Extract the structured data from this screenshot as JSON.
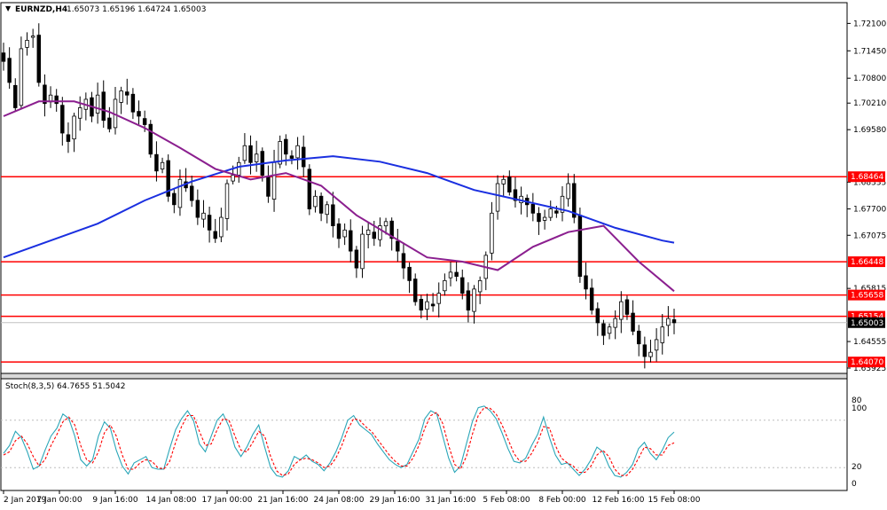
{
  "header": {
    "arrow": "▼",
    "symbol": "EURNZD,H4",
    "ohlc": "1.65073 1.65196 1.64724 1.65003"
  },
  "stoch": {
    "label": "Stoch(8,3,5) 64.7655 51.5042",
    "levels": [
      "100",
      "80",
      "20",
      "0"
    ]
  },
  "colors": {
    "background": "#ffffff",
    "candle": "#000000",
    "ma_fast": "#8b1f8f",
    "ma_slow": "#1a2fe0",
    "hline": "#ff0000",
    "hline_label_bg": "#ff0000",
    "current_price_bg": "#000000",
    "stoch_main": "#2aa6b8",
    "stoch_signal": "#ff0000"
  },
  "chart_data": [
    {
      "type": "candlestick",
      "title": "EURNZD,H4",
      "ylim": [
        1.6382,
        1.7255
      ],
      "y_ticks": [
        "1.72100",
        "1.71450",
        "1.70800",
        "1.70210",
        "1.69580",
        "1.68335",
        "1.67700",
        "1.67075",
        "1.65815",
        "1.64555",
        "1.63925"
      ],
      "x_ticks": [
        "2 Jan 2019",
        "7 Jan 00:00",
        "9 Jan 16:00",
        "14 Jan 08:00",
        "17 Jan 00:00",
        "21 Jan 16:00",
        "24 Jan 08:00",
        "29 Jan 16:00",
        "31 Jan 16:00",
        "5 Feb 08:00",
        "8 Feb 00:00",
        "12 Feb 16:00",
        "15 Feb 08:00"
      ],
      "horizontal_lines": [
        "1.68464",
        "1.66448",
        "1.65658",
        "1.65154",
        "1.64070"
      ],
      "current_price": "1.65003",
      "close_series": [
        1.712,
        1.707,
        1.701,
        1.715,
        1.717,
        1.718,
        1.707,
        1.702,
        1.704,
        1.702,
        1.695,
        1.693,
        1.699,
        1.701,
        1.703,
        1.699,
        1.704,
        1.698,
        1.696,
        1.703,
        1.705,
        1.704,
        1.7,
        1.699,
        1.697,
        1.69,
        1.686,
        1.688,
        1.68,
        1.678,
        1.684,
        1.682,
        1.679,
        1.675,
        1.676,
        1.672,
        1.67,
        1.675,
        1.683,
        1.685,
        1.688,
        1.692,
        1.688,
        1.69,
        1.685,
        1.68,
        1.688,
        1.693,
        1.69,
        1.689,
        1.692,
        1.687,
        1.677,
        1.68,
        1.676,
        1.678,
        1.673,
        1.67,
        1.672,
        1.667,
        1.663,
        1.671,
        1.672,
        1.67,
        1.673,
        1.674,
        1.67,
        1.667,
        1.663,
        1.66,
        1.655,
        1.653,
        1.655,
        1.654,
        1.657,
        1.66,
        1.662,
        1.661,
        1.657,
        1.653,
        1.658,
        1.66,
        1.666,
        1.676,
        1.683,
        1.684,
        1.681,
        1.679,
        1.68,
        1.678,
        1.676,
        1.674,
        1.675,
        1.677,
        1.676,
        1.68,
        1.683,
        1.675,
        1.661,
        1.658,
        1.653,
        1.65,
        1.647,
        1.649,
        1.651,
        1.655,
        1.652,
        1.648,
        1.645,
        1.642,
        1.643,
        1.646,
        1.649,
        1.651,
        1.65
      ],
      "ma_fast": {
        "name": "",
        "x_index": [
          0,
          6,
          12,
          18,
          24,
          30,
          36,
          42,
          48,
          54,
          60,
          66,
          72,
          78,
          84,
          90,
          96,
          102,
          108,
          114
        ],
        "values": [
          1.699,
          1.7025,
          1.7025,
          1.7,
          1.6962,
          1.6915,
          1.6865,
          1.684,
          1.6855,
          1.6825,
          1.6755,
          1.6705,
          1.6655,
          1.6645,
          1.6625,
          1.668,
          1.6715,
          1.673,
          1.6645,
          1.6575
        ]
      },
      "ma_slow": {
        "name": "",
        "x_index": [
          0,
          8,
          16,
          24,
          32,
          40,
          48,
          56,
          64,
          72,
          80,
          88,
          96,
          104,
          112,
          114
        ],
        "values": [
          1.6655,
          1.6695,
          1.6735,
          1.679,
          1.6835,
          1.687,
          1.6885,
          1.6895,
          1.6882,
          1.6855,
          1.6815,
          1.679,
          1.6765,
          1.6725,
          1.6695,
          1.669
        ]
      }
    },
    {
      "type": "line",
      "title": "Stoch(8,3,5) 64.7655 51.5042",
      "ylim": [
        0,
        100
      ],
      "levels": [
        80,
        20
      ],
      "series": [
        {
          "name": "",
          "values": [
            38,
            48,
            66,
            58,
            40,
            18,
            22,
            42,
            60,
            70,
            88,
            82,
            60,
            30,
            22,
            30,
            60,
            78,
            70,
            42,
            22,
            12,
            26,
            30,
            34,
            20,
            18,
            18,
            44,
            68,
            82,
            92,
            80,
            50,
            40,
            60,
            80,
            88,
            72,
            46,
            34,
            46,
            62,
            74,
            46,
            20,
            10,
            8,
            16,
            34,
            30,
            36,
            28,
            24,
            16,
            26,
            40,
            58,
            80,
            86,
            74,
            68,
            62,
            50,
            40,
            30,
            24,
            20,
            24,
            40,
            56,
            82,
            92,
            88,
            60,
            32,
            14,
            22,
            50,
            78,
            96,
            98,
            92,
            82,
            64,
            44,
            28,
            26,
            32,
            48,
            62,
            84,
            58,
            36,
            24,
            26,
            18,
            10,
            18,
            30,
            46,
            40,
            22,
            10,
            8,
            14,
            24,
            44,
            52,
            38,
            30,
            42,
            58,
            65
          ]
        },
        {
          "name": "",
          "values": [
            36,
            40,
            54,
            60,
            50,
            34,
            22,
            30,
            48,
            62,
            78,
            84,
            74,
            48,
            30,
            26,
            40,
            64,
            74,
            60,
            36,
            18,
            18,
            26,
            30,
            28,
            20,
            18,
            28,
            52,
            72,
            86,
            86,
            66,
            48,
            50,
            68,
            82,
            80,
            60,
            42,
            40,
            52,
            66,
            60,
            34,
            16,
            10,
            12,
            24,
            30,
            32,
            30,
            26,
            20,
            22,
            32,
            48,
            68,
            82,
            80,
            72,
            66,
            56,
            46,
            36,
            28,
            22,
            22,
            32,
            48,
            70,
            86,
            90,
            76,
            48,
            24,
            18,
            34,
            62,
            86,
            96,
            95,
            88,
            74,
            56,
            38,
            28,
            28,
            38,
            52,
            72,
            70,
            48,
            32,
            26,
            22,
            14,
            14,
            22,
            36,
            42,
            34,
            18,
            10,
            10,
            18,
            32,
            46,
            44,
            36,
            36,
            48,
            51.5
          ]
        }
      ]
    }
  ]
}
